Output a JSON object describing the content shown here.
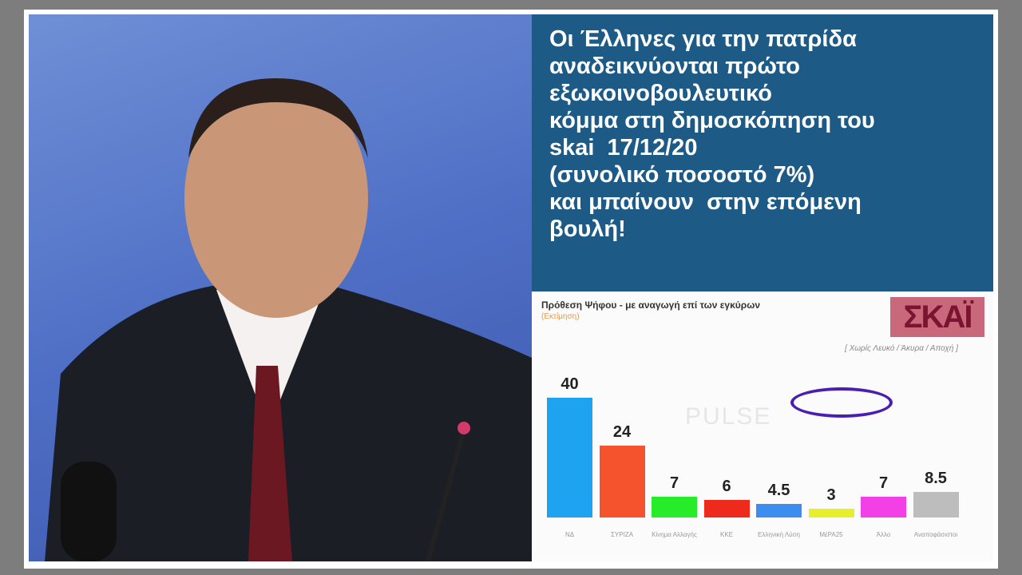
{
  "headline": [
    "Οι Έλληνες για την πατρίδα",
    "αναδεικνύονται πρώτο",
    "εξωκοινοβουλευτικό",
    "κόμμα στη δημοσκόπηση του",
    "skai  17/12/20",
    "(συνολικό ποσοστό 7%)",
    "και μπαίνουν  στην επόμενη",
    "βουλή!"
  ],
  "colors": {
    "panel": "#1d5a86"
  },
  "logo_text": "ΣΚΑΪ",
  "watermark": "PULSE",
  "chart_data": {
    "type": "bar",
    "title": "Πρόθεση Ψήφου - με αναγωγή επί των εγκύρων",
    "subtitle": "(Εκτίμηση)",
    "note": "[ Χωρίς Λευκό / Άκυρα / Αποχή ]",
    "categories": [
      "ΝΔ",
      "ΣΥΡΙΖΑ",
      "Κίνημα Αλλαγής",
      "ΚΚΕ",
      "Ελληνική Λύση",
      "ΜέΡΑ25",
      "Άλλο",
      "Αναποφάσιστοι"
    ],
    "values": [
      40,
      24,
      7,
      6,
      4.5,
      3,
      7,
      8.5
    ],
    "value_labels": [
      "40",
      "24",
      "7",
      "6",
      "4.5",
      "3",
      "7",
      "8.5"
    ],
    "colors": [
      "#1ea3f0",
      "#f5522e",
      "#27ec2a",
      "#ee2a1c",
      "#3b8ef0",
      "#e6ef2a",
      "#f33fe6",
      "#bdbdbd"
    ],
    "ylim": [
      0,
      40
    ]
  }
}
